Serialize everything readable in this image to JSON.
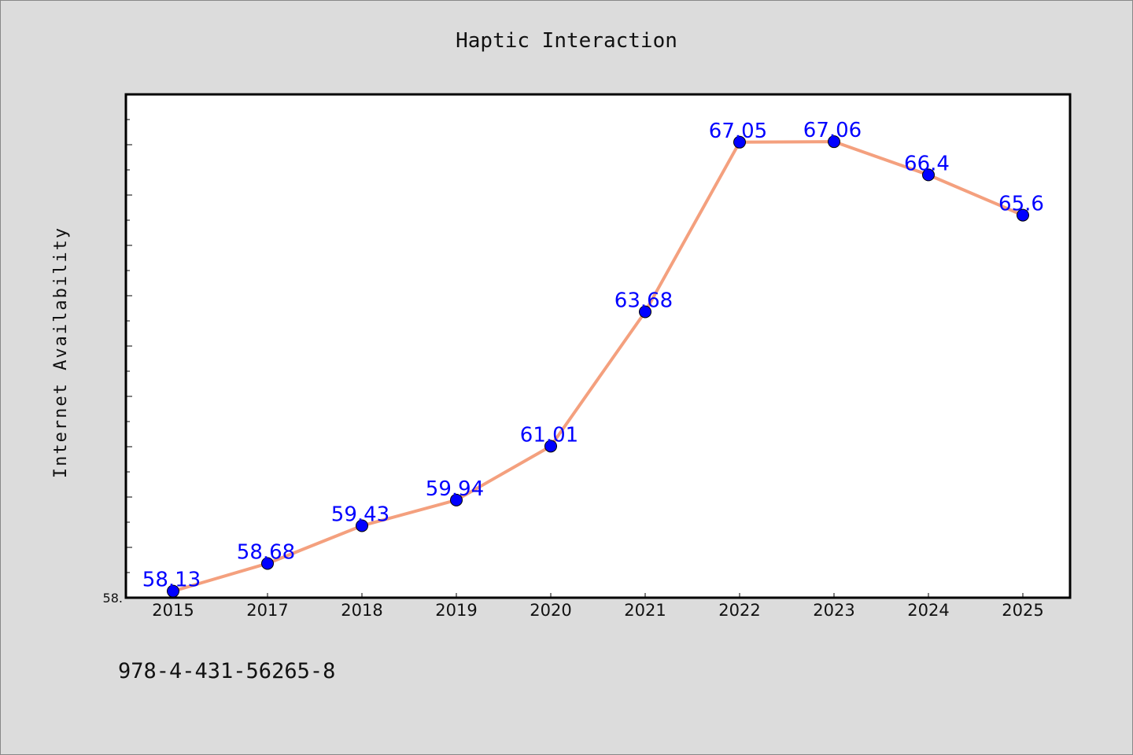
{
  "chart_data": {
    "type": "line",
    "title": "Haptic Interaction",
    "xlabel": "",
    "ylabel": "Internet Availability",
    "categories": [
      "2015",
      "2017",
      "2018",
      "2019",
      "2020",
      "2021",
      "2022",
      "2023",
      "2024",
      "2025"
    ],
    "series": [
      {
        "values": [
          58.13,
          58.68,
          59.43,
          59.94,
          61.01,
          63.68,
          67.05,
          67.06,
          66.4,
          65.6
        ],
        "labels": [
          "58.13",
          "58.68",
          "59.43",
          "59.94",
          "61.01",
          "63.68",
          "67.05",
          "67.06",
          "66.4",
          "65.6"
        ],
        "line_color": "#f4a07e",
        "marker_color": "#0000ff",
        "label_color": "#0000ff"
      }
    ],
    "ylim": [
      58.0,
      68.0
    ],
    "y_tick_label": "58.",
    "grid": false,
    "legend": "none"
  },
  "footer": {
    "code": "978-4-431-56265-8"
  }
}
